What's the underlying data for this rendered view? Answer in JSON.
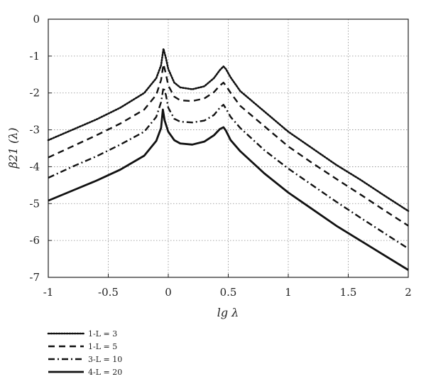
{
  "chart_data": {
    "type": "line",
    "title": "",
    "xlabel": "lg λ",
    "ylabel": "β21 (λ)",
    "xlim": [
      -1,
      2
    ],
    "ylim": [
      -7,
      0
    ],
    "xticks": [
      "-1",
      "-0.5",
      "0",
      "0.5",
      "1",
      "1.5",
      "2"
    ],
    "yticks": [
      "0",
      "-1",
      "-2",
      "-3",
      "-4",
      "-5",
      "-6",
      "-7"
    ],
    "grid": true,
    "legend_position": "bottom-left",
    "series": [
      {
        "name": "1-L = 3",
        "style": "dotted",
        "x": [
          -1,
          -0.8,
          -0.6,
          -0.4,
          -0.2,
          -0.1,
          -0.06,
          -0.04,
          -0.02,
          0,
          0.05,
          0.1,
          0.2,
          0.3,
          0.38,
          0.43,
          0.46,
          0.48,
          0.52,
          0.6,
          0.8,
          1.0,
          1.2,
          1.4,
          1.6,
          1.8,
          2.0
        ],
        "y": [
          -3.28,
          -3.0,
          -2.72,
          -2.4,
          -2.0,
          -1.6,
          -1.25,
          -0.8,
          -1.05,
          -1.35,
          -1.72,
          -1.85,
          -1.9,
          -1.82,
          -1.6,
          -1.38,
          -1.28,
          -1.35,
          -1.58,
          -1.95,
          -2.5,
          -3.05,
          -3.5,
          -3.95,
          -4.35,
          -4.78,
          -5.2
        ]
      },
      {
        "name": "1-L = 5",
        "style": "dashed",
        "x": [
          -1,
          -0.8,
          -0.6,
          -0.4,
          -0.2,
          -0.1,
          -0.06,
          -0.04,
          -0.02,
          0,
          0.05,
          0.1,
          0.2,
          0.3,
          0.38,
          0.43,
          0.46,
          0.48,
          0.52,
          0.6,
          0.8,
          1.0,
          1.2,
          1.4,
          1.6,
          1.8,
          2.0
        ],
        "y": [
          -3.75,
          -3.45,
          -3.15,
          -2.83,
          -2.45,
          -2.05,
          -1.65,
          -1.22,
          -1.48,
          -1.8,
          -2.1,
          -2.2,
          -2.22,
          -2.15,
          -1.98,
          -1.8,
          -1.72,
          -1.8,
          -2.0,
          -2.35,
          -2.9,
          -3.45,
          -3.9,
          -4.33,
          -4.75,
          -5.18,
          -5.6
        ]
      },
      {
        "name": "3-L = 10",
        "style": "dashdot",
        "x": [
          -1,
          -0.8,
          -0.6,
          -0.4,
          -0.2,
          -0.1,
          -0.06,
          -0.04,
          -0.02,
          0,
          0.05,
          0.1,
          0.2,
          0.3,
          0.38,
          0.43,
          0.46,
          0.48,
          0.52,
          0.6,
          0.8,
          1.0,
          1.2,
          1.4,
          1.6,
          1.8,
          2.0
        ],
        "y": [
          -4.3,
          -4.0,
          -3.72,
          -3.4,
          -3.05,
          -2.65,
          -2.25,
          -1.85,
          -2.05,
          -2.4,
          -2.7,
          -2.78,
          -2.8,
          -2.75,
          -2.6,
          -2.4,
          -2.32,
          -2.42,
          -2.65,
          -2.95,
          -3.55,
          -4.05,
          -4.5,
          -4.95,
          -5.38,
          -5.8,
          -6.22
        ]
      },
      {
        "name": "4-L = 20",
        "style": "solid",
        "x": [
          -1,
          -0.8,
          -0.6,
          -0.4,
          -0.2,
          -0.1,
          -0.06,
          -0.045,
          -0.03,
          0,
          0.05,
          0.1,
          0.2,
          0.3,
          0.38,
          0.43,
          0.46,
          0.48,
          0.52,
          0.6,
          0.8,
          1.0,
          1.2,
          1.4,
          1.6,
          1.8,
          2.0
        ],
        "y": [
          -4.92,
          -4.65,
          -4.38,
          -4.08,
          -3.7,
          -3.3,
          -2.95,
          -2.45,
          -2.75,
          -3.05,
          -3.28,
          -3.37,
          -3.4,
          -3.32,
          -3.15,
          -2.98,
          -2.93,
          -3.02,
          -3.28,
          -3.58,
          -4.18,
          -4.7,
          -5.15,
          -5.6,
          -6.0,
          -6.4,
          -6.8
        ]
      }
    ]
  }
}
